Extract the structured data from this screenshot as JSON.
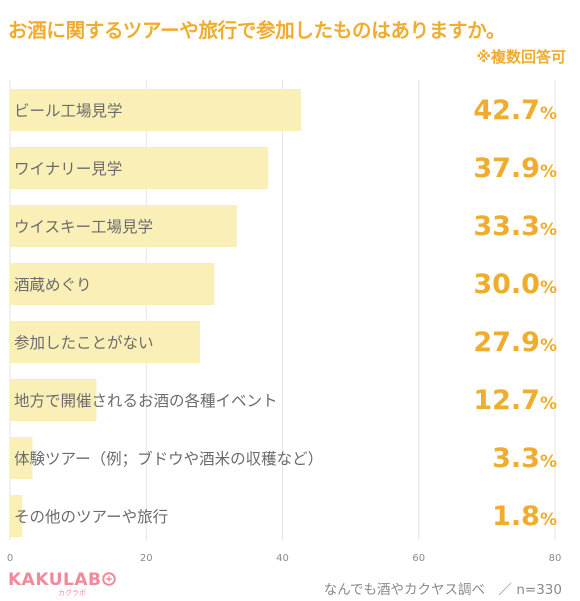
{
  "chart_data": {
    "type": "bar",
    "orientation": "horizontal",
    "title": "お酒に関するツアーや旅行で参加したものはありますか。",
    "subtitle": "※複数回答可",
    "categories": [
      "ビール工場見学",
      "ワイナリー見学",
      "ウイスキー工場見学",
      "酒蔵めぐり",
      "参加したことがない",
      "地方で開催されるお酒の各種イベント",
      "体験ツアー（例；ブドウや酒米の収穫など）",
      "その他のツアーや旅行"
    ],
    "values": [
      42.7,
      37.9,
      33.3,
      30.0,
      27.9,
      12.7,
      3.3,
      1.8
    ],
    "value_labels": [
      "42.7",
      "37.9",
      "33.3",
      "30.0",
      "27.9",
      "12.7",
      "3.3",
      "1.8"
    ],
    "value_unit": "%",
    "xlim": [
      0,
      80
    ],
    "xticks": [
      0,
      20,
      40,
      60,
      80
    ],
    "grid": true,
    "bar_color": "#fbefb8",
    "accent_color": "#f0ac2e"
  },
  "footer": {
    "logo": "KAKULAB",
    "logo_sub": "カクラボ",
    "source": "なんでも酒やカクヤス調べ　／ n=330"
  }
}
